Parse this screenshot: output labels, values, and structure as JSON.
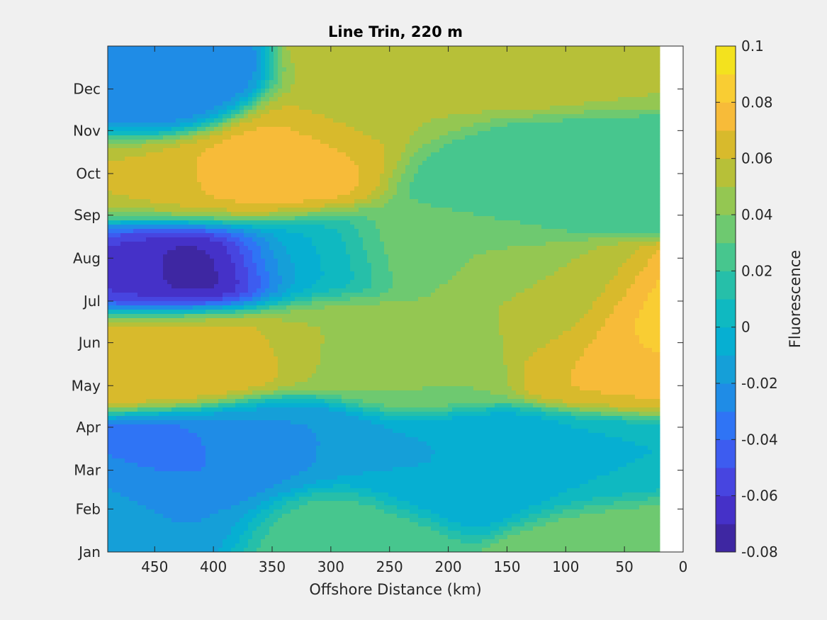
{
  "chart_data": {
    "type": "heatmap",
    "subtype": "filled-contour",
    "title": "Line Trin, 220 m",
    "xlabel": "Offshore Distance (km)",
    "ylabel": "",
    "x_reversed": true,
    "xlim": [
      490,
      0
    ],
    "x_ticks": [
      450,
      400,
      350,
      300,
      250,
      200,
      150,
      100,
      50,
      0
    ],
    "x_data_extent_km": [
      490,
      20
    ],
    "y_ticks": [
      "Jan",
      "Feb",
      "Mar",
      "Apr",
      "May",
      "Jun",
      "Jul",
      "Aug",
      "Sep",
      "Oct",
      "Nov",
      "Dec"
    ],
    "colorbar": {
      "label": "Fluorescence",
      "range": [
        -0.08,
        0.1
      ],
      "levels": [
        -0.08,
        -0.07,
        -0.06,
        -0.05,
        -0.04,
        -0.03,
        -0.02,
        -0.01,
        0,
        0.01,
        0.02,
        0.03,
        0.04,
        0.05,
        0.06,
        0.07,
        0.08,
        0.09,
        0.1
      ],
      "ticks": [
        -0.08,
        -0.06,
        -0.04,
        -0.02,
        0,
        0.02,
        0.04,
        0.06,
        0.08,
        0.1
      ],
      "tick_labels": [
        "-0.08",
        "-0.06",
        "-0.04",
        "-0.02",
        "0",
        "0.02",
        "0.04",
        "0.06",
        "0.08",
        "0.1"
      ],
      "colors": [
        "#3e27a2",
        "#4531c8",
        "#4745e0",
        "#3d5cf0",
        "#2f74f5",
        "#1f8ce6",
        "#159fd8",
        "#06afd2",
        "#0fb9c1",
        "#26bfa9",
        "#47c68e",
        "#6ec970",
        "#94c752",
        "#b7c038",
        "#d8ba2c",
        "#f7bb39",
        "#f9cd33",
        "#f3e21e",
        "#f9fb15"
      ]
    },
    "field_samples": {
      "note": "approximate fluorescence values read from contour colours; x in km offshore, y in months since Jan 1 (0-12)",
      "points": [
        {
          "x": 490,
          "y": 1.5,
          "v": -0.01
        },
        {
          "x": 460,
          "y": 2.0,
          "v": -0.04
        },
        {
          "x": 430,
          "y": 1.0,
          "v": -0.02
        },
        {
          "x": 400,
          "y": 2.0,
          "v": -0.03
        },
        {
          "x": 340,
          "y": 2.5,
          "v": -0.02
        },
        {
          "x": 300,
          "y": 0.5,
          "v": 0.03
        },
        {
          "x": 220,
          "y": 2.0,
          "v": -0.01
        },
        {
          "x": 160,
          "y": 2.0,
          "v": -0.01
        },
        {
          "x": 80,
          "y": 2.0,
          "v": 0.0
        },
        {
          "x": 50,
          "y": 0.3,
          "v": 0.04
        },
        {
          "x": 480,
          "y": 4.6,
          "v": 0.07
        },
        {
          "x": 400,
          "y": 4.7,
          "v": 0.07
        },
        {
          "x": 300,
          "y": 5.0,
          "v": 0.05
        },
        {
          "x": 230,
          "y": 4.5,
          "v": 0.04
        },
        {
          "x": 60,
          "y": 4.6,
          "v": 0.07
        },
        {
          "x": 25,
          "y": 5.2,
          "v": 0.09
        },
        {
          "x": 480,
          "y": 6.8,
          "v": -0.06
        },
        {
          "x": 410,
          "y": 6.8,
          "v": -0.08
        },
        {
          "x": 320,
          "y": 7.0,
          "v": 0.0
        },
        {
          "x": 220,
          "y": 7.2,
          "v": 0.04
        },
        {
          "x": 110,
          "y": 5.6,
          "v": 0.05
        },
        {
          "x": 480,
          "y": 8.8,
          "v": 0.06
        },
        {
          "x": 400,
          "y": 8.8,
          "v": 0.07
        },
        {
          "x": 350,
          "y": 9.0,
          "v": 0.08
        },
        {
          "x": 310,
          "y": 9.5,
          "v": 0.07
        },
        {
          "x": 170,
          "y": 9.0,
          "v": 0.02
        },
        {
          "x": 60,
          "y": 9.5,
          "v": 0.02
        },
        {
          "x": 460,
          "y": 10.9,
          "v": -0.03
        },
        {
          "x": 250,
          "y": 10.5,
          "v": 0.05
        },
        {
          "x": 220,
          "y": 11.5,
          "v": 0.06
        },
        {
          "x": 100,
          "y": 11.5,
          "v": 0.06
        },
        {
          "x": 50,
          "y": 11.5,
          "v": 0.05
        }
      ]
    }
  }
}
